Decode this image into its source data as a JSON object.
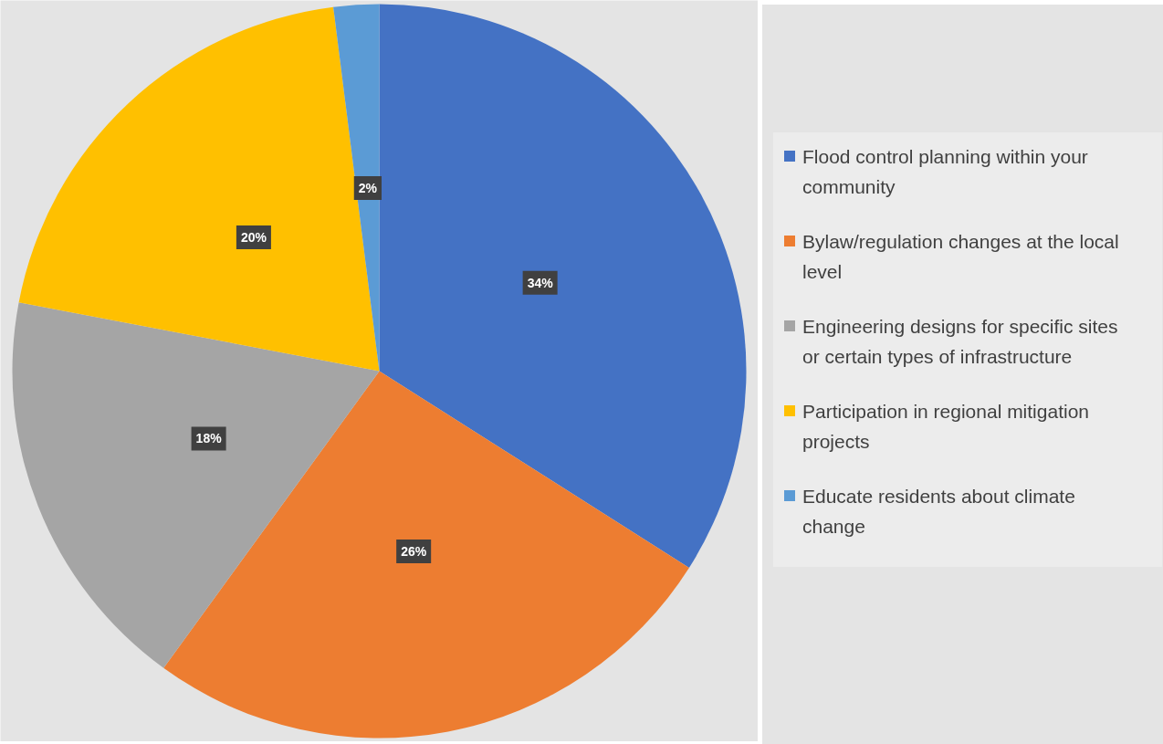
{
  "chart_data": {
    "type": "pie",
    "categories": [
      "Flood control planning within your community",
      "Bylaw/regulation changes at the local level",
      "Engineering designs for specific sites or certain types of infrastructure",
      "Participation in regional mitigation projects",
      "Educate residents about climate change"
    ],
    "values": [
      34,
      26,
      18,
      20,
      2
    ],
    "colors": [
      "#4472c4",
      "#ed7d31",
      "#a5a5a5",
      "#ffc000",
      "#5b9bd5"
    ],
    "value_labels": [
      "34%",
      "26%",
      "18%",
      "20%",
      "2%"
    ],
    "legend": "right"
  }
}
